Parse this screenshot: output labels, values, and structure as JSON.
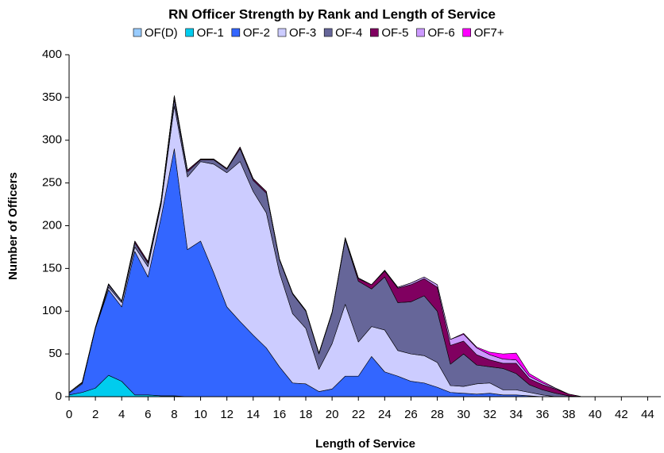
{
  "chart_data": {
    "type": "stacked_area",
    "title": "RN Officer Strength by Rank and Length of Service",
    "x_label": "Length of Service",
    "y_label": "Number of Officers",
    "x": [
      0,
      1,
      2,
      3,
      4,
      5,
      6,
      7,
      8,
      9,
      10,
      11,
      12,
      13,
      14,
      15,
      16,
      17,
      18,
      19,
      20,
      21,
      22,
      23,
      24,
      25,
      26,
      27,
      28,
      29,
      30,
      31,
      32,
      33,
      34,
      35,
      36,
      37,
      38,
      39,
      40,
      41,
      42,
      43,
      44
    ],
    "xlim": [
      0,
      45
    ],
    "xticks": [
      0,
      2,
      4,
      6,
      8,
      10,
      12,
      14,
      16,
      18,
      20,
      22,
      24,
      26,
      28,
      30,
      32,
      34,
      36,
      38,
      40,
      42,
      44
    ],
    "ylim": [
      0,
      400
    ],
    "yticks": [
      0,
      50,
      100,
      150,
      200,
      250,
      300,
      350,
      400
    ],
    "grid": false,
    "legend": "top",
    "series": [
      {
        "name": "OF(D)",
        "color": "#99ccff",
        "values": [
          0,
          0,
          0,
          0,
          0,
          0,
          0,
          0,
          0,
          0,
          0,
          0,
          0,
          0,
          0,
          0,
          0,
          0,
          0,
          0,
          0,
          0,
          0,
          0,
          0,
          0,
          0,
          0,
          0,
          0,
          0,
          0,
          0,
          0,
          0,
          0,
          0,
          0,
          0,
          0,
          0,
          0,
          0,
          0,
          0
        ]
      },
      {
        "name": "OF-1",
        "color": "#00ccee",
        "values": [
          2,
          5,
          10,
          25,
          18,
          2,
          2,
          1,
          1,
          0,
          0,
          0,
          0,
          0,
          0,
          0,
          0,
          0,
          0,
          0,
          0,
          0,
          0,
          0,
          0,
          0,
          0,
          0,
          0,
          0,
          0,
          0,
          0,
          0,
          0,
          0,
          0,
          0,
          0,
          0,
          0,
          0,
          0,
          0,
          0
        ]
      },
      {
        "name": "OF-2",
        "color": "#3366ff",
        "values": [
          2,
          10,
          70,
          100,
          87,
          168,
          138,
          209,
          289,
          172,
          182,
          145,
          105,
          88,
          72,
          57,
          35,
          16,
          15,
          6,
          9,
          24,
          24,
          47,
          29,
          24,
          18,
          16,
          11,
          5,
          4,
          3,
          4,
          2,
          2,
          1,
          0,
          0,
          0,
          0,
          0,
          0,
          0,
          0,
          0
        ]
      },
      {
        "name": "OF-3",
        "color": "#ccccff",
        "values": [
          1,
          1,
          0,
          3,
          5,
          5,
          12,
          15,
          50,
          85,
          93,
          127,
          157,
          187,
          168,
          158,
          110,
          81,
          65,
          26,
          53,
          84,
          40,
          35,
          49,
          30,
          32,
          32,
          29,
          8,
          8,
          12,
          12,
          6,
          6,
          4,
          2,
          0,
          0,
          0,
          0,
          0,
          0,
          0,
          0
        ]
      },
      {
        "name": "OF-4",
        "color": "#666699",
        "values": [
          0,
          1,
          1,
          3,
          2,
          5,
          4,
          3,
          8,
          6,
          2,
          5,
          4,
          15,
          13,
          23,
          15,
          23,
          20,
          18,
          36,
          76,
          71,
          44,
          62,
          56,
          61,
          70,
          60,
          25,
          38,
          22,
          19,
          25,
          19,
          9,
          6,
          4,
          1,
          0,
          0,
          0,
          0,
          0,
          0
        ]
      },
      {
        "name": "OF-5",
        "color": "#800060",
        "values": [
          0,
          0,
          0,
          1,
          0,
          2,
          2,
          2,
          4,
          2,
          1,
          1,
          1,
          2,
          2,
          2,
          1,
          1,
          1,
          1,
          1,
          1,
          3,
          5,
          7,
          17,
          20,
          20,
          28,
          22,
          15,
          12,
          8,
          6,
          12,
          7,
          6,
          5,
          2,
          0,
          0,
          0,
          0,
          0,
          0
        ]
      },
      {
        "name": "OF-6",
        "color": "#cc99ff",
        "values": [
          0,
          0,
          0,
          0,
          0,
          0,
          0,
          0,
          0,
          0,
          0,
          0,
          0,
          0,
          0,
          0,
          0,
          0,
          0,
          0,
          0,
          1,
          1,
          0,
          1,
          1,
          2,
          2,
          3,
          7,
          8,
          8,
          6,
          5,
          4,
          3,
          2,
          1,
          0,
          0,
          0,
          0,
          0,
          0,
          0
        ]
      },
      {
        "name": "OF7+",
        "color": "#ff00ff",
        "values": [
          0,
          0,
          0,
          0,
          0,
          0,
          0,
          0,
          0,
          0,
          0,
          0,
          0,
          0,
          0,
          0,
          0,
          0,
          0,
          0,
          0,
          0,
          0,
          0,
          0,
          0,
          0,
          0,
          0,
          0,
          1,
          1,
          3,
          6,
          8,
          3,
          2,
          0,
          0,
          0,
          0,
          0,
          0,
          0,
          0
        ]
      }
    ]
  }
}
